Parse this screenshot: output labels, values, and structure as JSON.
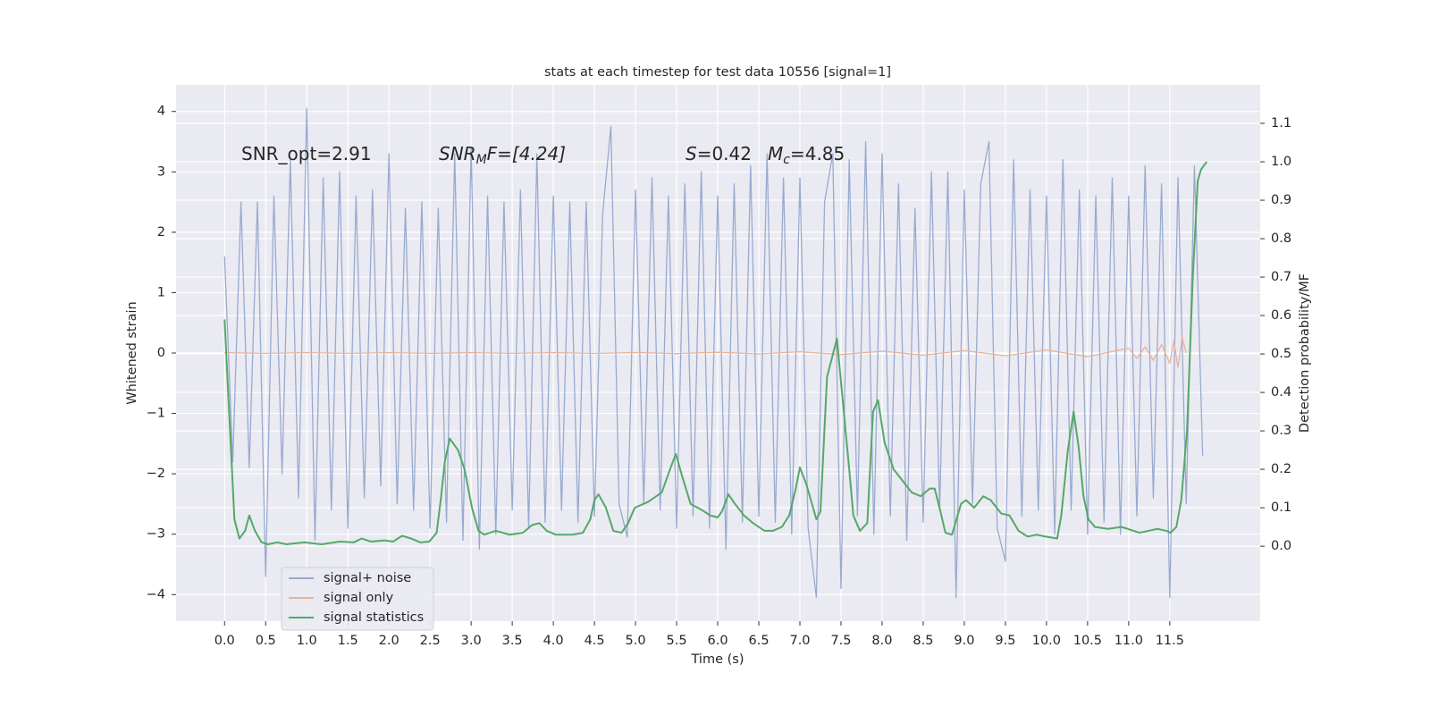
{
  "chart_data": {
    "type": "line",
    "title": "stats at each timestep for test data 10556 [signal=1]",
    "xlabel": "Time (s)",
    "ylabel": "Whitened strain",
    "y2label": "Detection probability/MF",
    "xlim": [
      -0.59,
      12.6
    ],
    "ylim": [
      -4.44,
      4.44
    ],
    "y2lim": [
      -0.195,
      1.2
    ],
    "xticks": [
      {
        "value": 0,
        "label": "0.0"
      },
      0.5,
      {
        "value": 1,
        "label": "1.0"
      },
      1.5,
      {
        "value": 2,
        "label": "2.0"
      },
      2.5,
      {
        "value": 3,
        "label": "3.0"
      },
      3.5,
      {
        "value": 4,
        "label": "4.0"
      },
      4.5,
      {
        "value": 5,
        "label": "5.0"
      },
      5.5,
      {
        "value": 6,
        "label": "6.0"
      },
      6.5,
      {
        "value": 7,
        "label": "7.0"
      },
      7.5,
      {
        "value": 8,
        "label": "8.0"
      },
      8.5,
      {
        "value": 9,
        "label": "9.0"
      },
      9.5,
      {
        "value": 10,
        "label": "10.0"
      },
      10.5,
      {
        "value": 11,
        "label": "11.0"
      },
      11.5
    ],
    "yticks": [
      {
        "value": -4,
        "label": "−4"
      },
      {
        "value": -3,
        "label": "−3"
      },
      {
        "value": -2,
        "label": "−2"
      },
      {
        "value": -1,
        "label": "−1"
      },
      0,
      1,
      2,
      3,
      4
    ],
    "y2ticks": [
      {
        "value": 0,
        "label": "0.0"
      },
      0.1,
      0.2,
      0.3,
      0.4,
      0.5,
      0.6,
      0.7,
      0.8,
      0.9,
      {
        "value": 1,
        "label": "1.0"
      },
      1.1
    ],
    "grid": true,
    "legend": "lower left",
    "annotations": [
      {
        "parts": [
          "SNR_opt=2.91"
        ]
      },
      {
        "parts": [
          "SNR",
          "M",
          "F=[4.24]"
        ]
      },
      {
        "parts": [
          "S",
          "=0.42"
        ]
      },
      {
        "parts": [
          "M",
          "c",
          "=4.85"
        ]
      }
    ],
    "series": [
      {
        "name": "signal+ noise",
        "color": "#99aad0",
        "x": [
          0,
          0.1,
          0.2,
          0.3,
          0.4,
          0.5,
          0.6,
          0.7,
          0.8,
          0.9,
          1,
          1.1,
          1.2,
          1.3,
          1.4,
          1.5,
          1.6,
          1.7,
          1.8,
          1.9,
          2,
          2.1,
          2.2,
          2.3,
          2.4,
          2.5,
          2.6,
          2.7,
          2.8,
          2.9,
          3,
          3.1,
          3.2,
          3.3,
          3.4,
          3.5,
          3.6,
          3.7,
          3.8,
          3.9,
          4,
          4.1,
          4.2,
          4.3,
          4.4,
          4.5,
          4.6,
          4.7,
          4.8,
          4.9,
          5,
          5.1,
          5.2,
          5.3,
          5.4,
          5.5,
          5.6,
          5.7,
          5.8,
          5.9,
          6,
          6.1,
          6.2,
          6.3,
          6.4,
          6.5,
          6.6,
          6.7,
          6.8,
          6.9,
          7,
          7.1,
          7.2,
          7.3,
          7.4,
          7.5,
          7.6,
          7.7,
          7.8,
          7.9,
          8,
          8.1,
          8.2,
          8.3,
          8.4,
          8.5,
          8.6,
          8.7,
          8.8,
          8.9,
          9,
          9.1,
          9.2,
          9.3,
          9.4,
          9.5,
          9.6,
          9.7,
          9.8,
          9.9,
          10,
          10.1,
          10.2,
          10.3,
          10.4,
          10.5,
          10.6,
          10.7,
          10.8,
          10.9,
          11,
          11.1,
          11.2,
          11.3,
          11.4,
          11.5,
          11.6,
          11.7,
          11.8,
          11.9
        ],
        "values": [
          1.6,
          -1.8,
          2.5,
          -1.9,
          2.5,
          -3.7,
          2.6,
          -2.0,
          3.2,
          -2.4,
          4.05,
          -3.1,
          2.9,
          -2.6,
          3.0,
          -2.9,
          2.6,
          -2.4,
          2.7,
          -2.2,
          3.3,
          -2.5,
          2.4,
          -2.6,
          2.5,
          -2.9,
          2.4,
          -2.8,
          3.3,
          -3.1,
          3.4,
          -3.25,
          2.6,
          -3.0,
          2.5,
          -2.6,
          2.7,
          -2.9,
          3.3,
          -2.8,
          2.6,
          -2.6,
          2.5,
          -2.8,
          2.5,
          -2.7,
          2.3,
          3.75,
          -2.5,
          -3.05,
          2.7,
          -2.5,
          2.9,
          -2.6,
          2.6,
          -2.9,
          2.8,
          -2.7,
          3.0,
          -2.9,
          2.6,
          -3.25,
          2.8,
          -2.8,
          3.1,
          -2.7,
          3.3,
          -2.8,
          2.9,
          -3.0,
          2.9,
          -2.9,
          -4.05,
          2.5,
          3.3,
          -3.9,
          3.2,
          -2.7,
          3.5,
          -3.0,
          3.3,
          -2.7,
          2.8,
          -3.1,
          2.4,
          -2.8,
          3.0,
          -2.6,
          3.0,
          -4.05,
          2.7,
          -2.5,
          2.8,
          3.5,
          -2.9,
          -3.45,
          3.2,
          -2.7,
          2.7,
          -2.6,
          2.6,
          -3.0,
          3.2,
          -2.6,
          2.7,
          -3.0,
          2.6,
          -2.8,
          2.9,
          -3.0,
          2.6,
          -2.7,
          3.1,
          -2.4,
          2.8,
          -4.05,
          2.9,
          -2.5,
          3.1,
          -1.7
        ]
      },
      {
        "name": "signal only",
        "color": "#e8b39a",
        "x": [
          0,
          0.5,
          1,
          1.5,
          2,
          2.5,
          3,
          3.5,
          4,
          4.5,
          5,
          5.5,
          6,
          6.5,
          7,
          7.5,
          8,
          8.5,
          9,
          9.5,
          10,
          10.5,
          11,
          11.1,
          11.2,
          11.3,
          11.4,
          11.5,
          11.55,
          11.6,
          11.65,
          11.7
        ],
        "values": [
          0.005,
          -0.005,
          0.005,
          -0.005,
          0.005,
          -0.005,
          0.005,
          -0.006,
          0.006,
          -0.007,
          0.008,
          -0.01,
          0.012,
          -0.015,
          0.02,
          -0.025,
          0.03,
          -0.035,
          0.04,
          -0.045,
          0.05,
          -0.06,
          0.08,
          -0.09,
          0.1,
          -0.12,
          0.14,
          -0.17,
          0.2,
          -0.24,
          0.26,
          0
        ]
      },
      {
        "name": "signal statistics",
        "color": "#55a868",
        "axis": "y2",
        "x": [
          0,
          0.12,
          0.18,
          0.25,
          0.3,
          0.37,
          0.45,
          0.53,
          0.64,
          0.75,
          0.97,
          1.18,
          1.4,
          1.57,
          1.67,
          1.78,
          1.95,
          2.05,
          2.16,
          2.27,
          2.38,
          2.49,
          2.58,
          2.63,
          2.68,
          2.74,
          2.84,
          2.92,
          3.01,
          3.09,
          3.16,
          3.3,
          3.47,
          3.63,
          3.74,
          3.83,
          3.92,
          4.03,
          4.23,
          4.36,
          4.45,
          4.5,
          4.55,
          4.64,
          4.73,
          4.83,
          4.91,
          4.99,
          5.15,
          5.32,
          5.42,
          5.49,
          5.57,
          5.67,
          5.8,
          5.91,
          6,
          6.05,
          6.13,
          6.21,
          6.32,
          6.43,
          6.57,
          6.67,
          6.78,
          6.87,
          6.95,
          7,
          7.08,
          7.2,
          7.25,
          7.33,
          7.45,
          7.6,
          7.65,
          7.73,
          7.82,
          7.89,
          7.95,
          8.03,
          8.14,
          8.25,
          8.36,
          8.47,
          8.58,
          8.64,
          8.71,
          8.77,
          8.85,
          8.96,
          9.02,
          9.12,
          9.23,
          9.32,
          9.45,
          9.55,
          9.66,
          9.77,
          9.88,
          9.99,
          10.13,
          10.18,
          10.26,
          10.33,
          10.39,
          10.45,
          10.51,
          10.59,
          10.75,
          10.91,
          10.99,
          11.13,
          11.24,
          11.35,
          11.46,
          11.51,
          11.58,
          11.64,
          11.71,
          11.78,
          11.84,
          11.88,
          11.95
        ],
        "values": [
          0.59,
          0.07,
          0.02,
          0.04,
          0.08,
          0.04,
          0.01,
          0.005,
          0.01,
          0.005,
          0.01,
          0.005,
          0.012,
          0.01,
          0.02,
          0.012,
          0.015,
          0.012,
          0.027,
          0.02,
          0.01,
          0.012,
          0.035,
          0.12,
          0.22,
          0.28,
          0.25,
          0.2,
          0.1,
          0.04,
          0.03,
          0.04,
          0.03,
          0.035,
          0.055,
          0.06,
          0.04,
          0.03,
          0.03,
          0.035,
          0.07,
          0.12,
          0.135,
          0.1,
          0.04,
          0.035,
          0.06,
          0.1,
          0.115,
          0.14,
          0.2,
          0.24,
          0.18,
          0.11,
          0.095,
          0.08,
          0.075,
          0.09,
          0.135,
          0.11,
          0.08,
          0.06,
          0.04,
          0.04,
          0.05,
          0.08,
          0.15,
          0.205,
          0.16,
          0.07,
          0.09,
          0.44,
          0.54,
          0.2,
          0.08,
          0.04,
          0.06,
          0.35,
          0.38,
          0.27,
          0.2,
          0.17,
          0.14,
          0.13,
          0.15,
          0.15,
          0.09,
          0.035,
          0.03,
          0.11,
          0.12,
          0.1,
          0.13,
          0.12,
          0.085,
          0.08,
          0.04,
          0.025,
          0.03,
          0.025,
          0.02,
          0.08,
          0.25,
          0.35,
          0.26,
          0.13,
          0.07,
          0.05,
          0.045,
          0.05,
          0.045,
          0.035,
          0.04,
          0.045,
          0.04,
          0.035,
          0.05,
          0.12,
          0.3,
          0.7,
          0.95,
          0.98,
          1.0
        ]
      }
    ]
  }
}
